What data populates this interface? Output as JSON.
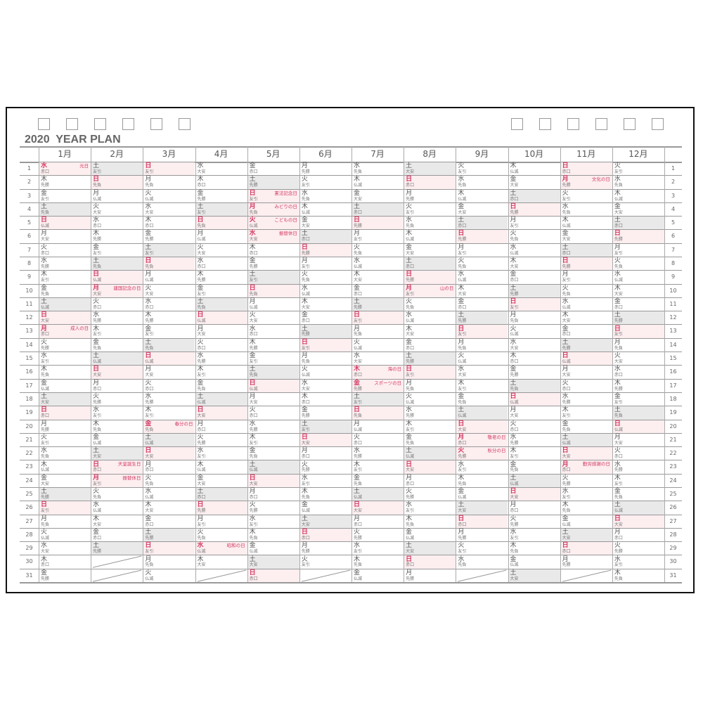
{
  "title": "2020  YEAR PLAN",
  "checkbox_count_left": 6,
  "checkbox_count_right": 6,
  "colors": {
    "holiday_text": "#d23a62",
    "holiday_bg": "#fdeef0",
    "saturday_bg": "#e9e9ea",
    "frame": "#111111"
  },
  "days": [
    1,
    2,
    3,
    4,
    5,
    6,
    7,
    8,
    9,
    10,
    11,
    12,
    13,
    14,
    15,
    16,
    17,
    18,
    19,
    20,
    21,
    22,
    23,
    24,
    25,
    26,
    27,
    28,
    29,
    30,
    31
  ],
  "months": [
    {
      "label": "1月",
      "wd": "水木金土日月火水木金土日月火水木金土日月火水木金土日月火水木金",
      "rk": [
        "赤口",
        "先勝",
        "友引",
        "先負",
        "仏滅",
        "大安",
        "赤口",
        "先勝",
        "友引",
        "先負",
        "仏滅",
        "大安",
        "赤口",
        "先勝",
        "友引",
        "先負",
        "仏滅",
        "大安",
        "赤口",
        "先勝",
        "友引",
        "先負",
        "仏滅",
        "大安",
        "先勝",
        "友引",
        "先負",
        "仏滅",
        "大安",
        "赤口",
        "先勝"
      ],
      "hol": {
        "1": "元日",
        "13": "成人の日"
      }
    },
    {
      "label": "2月",
      "wd": "土日月火水木金土日月火水木金土日月火水木金土日月火水木金土",
      "rk": [
        "友引",
        "先負",
        "仏滅",
        "大安",
        "赤口",
        "先勝",
        "友引",
        "先負",
        "仏滅",
        "大安",
        "赤口",
        "先勝",
        "友引",
        "先負",
        "仏滅",
        "大安",
        "赤口",
        "先勝",
        "友引",
        "先負",
        "仏滅",
        "大安",
        "赤口",
        "友引",
        "先負",
        "仏滅",
        "大安",
        "赤口",
        "先勝"
      ],
      "hol": {
        "10": "建国記念の日",
        "23": "天皇誕生日",
        "24": "振替休日"
      }
    },
    {
      "label": "3月",
      "wd": "日月火水木金土日月火水木金土日月火水木金土日月火水木金土日月火",
      "rk": [
        "友引",
        "先負",
        "仏滅",
        "大安",
        "赤口",
        "先勝",
        "友引",
        "先負",
        "仏滅",
        "大安",
        "赤口",
        "先勝",
        "友引",
        "先負",
        "仏滅",
        "大安",
        "赤口",
        "先勝",
        "友引",
        "先負",
        "仏滅",
        "大安",
        "赤口",
        "先負",
        "仏滅",
        "大安",
        "赤口",
        "先勝",
        "友引",
        "先負",
        "仏滅"
      ],
      "hol": {
        "20": "春分の日"
      }
    },
    {
      "label": "4月",
      "wd": "水木金土日月火水木金土日月火水木金土日月火水木金土日月火水木",
      "rk": [
        "大安",
        "赤口",
        "先勝",
        "友引",
        "先負",
        "仏滅",
        "大安",
        "赤口",
        "先勝",
        "友引",
        "先負",
        "仏滅",
        "大安",
        "赤口",
        "先勝",
        "友引",
        "先負",
        "仏滅",
        "大安",
        "赤口",
        "先勝",
        "友引",
        "仏滅",
        "大安",
        "赤口",
        "先勝",
        "友引",
        "先負",
        "仏滅",
        "大安"
      ],
      "hol": {
        "29": "昭和の日"
      }
    },
    {
      "label": "5月",
      "wd": "金土日月火水木金土日月火水木金土日月火水木金土日月火水木金土日",
      "rk": [
        "赤口",
        "先勝",
        "友引",
        "先負",
        "仏滅",
        "大安",
        "赤口",
        "先勝",
        "友引",
        "先負",
        "仏滅",
        "大安",
        "赤口",
        "先勝",
        "友引",
        "先負",
        "仏滅",
        "大安",
        "赤口",
        "先勝",
        "友引",
        "先負",
        "仏滅",
        "大安",
        "赤口",
        "先勝",
        "友引",
        "先負",
        "仏滅",
        "大安",
        "赤口"
      ],
      "hol": {
        "3": "憲法記念日",
        "4": "みどりの日",
        "5": "こどもの日",
        "6": "振替休日"
      }
    },
    {
      "label": "6月",
      "wd": "月火水木金土日月火水木金土日月火水木金土日月火水木金土日月火",
      "rk": [
        "先勝",
        "友引",
        "先負",
        "仏滅",
        "大安",
        "赤口",
        "先勝",
        "友引",
        "先負",
        "仏滅",
        "大安",
        "赤口",
        "先勝",
        "友引",
        "先負",
        "仏滅",
        "大安",
        "赤口",
        "先勝",
        "友引",
        "大安",
        "赤口",
        "先勝",
        "友引",
        "先負",
        "仏滅",
        "大安",
        "赤口",
        "先勝",
        "友引"
      ],
      "hol": {}
    },
    {
      "label": "7月",
      "wd": "水木金土日月火水木金土日月火水木金土日月火水木金土日月火水木金",
      "rk": [
        "先負",
        "仏滅",
        "大安",
        "赤口",
        "先勝",
        "友引",
        "先負",
        "仏滅",
        "大安",
        "赤口",
        "先勝",
        "友引",
        "先負",
        "仏滅",
        "大安",
        "赤口",
        "先勝",
        "友引",
        "先負",
        "仏滅",
        "赤口",
        "先勝",
        "友引",
        "先負",
        "仏滅",
        "大安",
        "赤口",
        "先勝",
        "友引",
        "先負",
        "仏滅"
      ],
      "hol": {
        "16": "海の日",
        "17": "スポーツの日"
      }
    },
    {
      "label": "8月",
      "wd": "土日月火水木金土日月火水木金土日月火水木金土日月火水木金土日月",
      "rk": [
        "大安",
        "赤口",
        "先勝",
        "友引",
        "先負",
        "仏滅",
        "大安",
        "赤口",
        "先勝",
        "友引",
        "先負",
        "仏滅",
        "大安",
        "赤口",
        "先勝",
        "友引",
        "先負",
        "仏滅",
        "先勝",
        "友引",
        "先負",
        "仏滅",
        "大安",
        "赤口",
        "先勝",
        "友引",
        "先負",
        "仏滅",
        "大安",
        "赤口",
        "先勝"
      ],
      "hol": {
        "10": "山の日"
      }
    },
    {
      "label": "9月",
      "wd": "火水木金土日月火水木金土日月火水木金土日月火水木金土日月火水",
      "rk": [
        "友引",
        "先負",
        "仏滅",
        "大安",
        "赤口",
        "先勝",
        "友引",
        "先負",
        "仏滅",
        "大安",
        "赤口",
        "先勝",
        "友引",
        "先負",
        "仏滅",
        "大安",
        "友引",
        "先負",
        "仏滅",
        "大安",
        "赤口",
        "先勝",
        "友引",
        "先負",
        "仏滅",
        "大安",
        "赤口",
        "先勝",
        "友引",
        "先負"
      ],
      "hol": {
        "21": "敬老の日",
        "22": "秋分の日"
      }
    },
    {
      "label": "10月",
      "wd": "木金土日月火水木金土日月火水木金土日月火水木金土日月火水木金土",
      "rk": [
        "仏滅",
        "大安",
        "赤口",
        "先勝",
        "友引",
        "先負",
        "仏滅",
        "大安",
        "赤口",
        "先勝",
        "友引",
        "先負",
        "仏滅",
        "大安",
        "赤口",
        "先勝",
        "先負",
        "仏滅",
        "大安",
        "赤口",
        "先勝",
        "友引",
        "先負",
        "仏滅",
        "大安",
        "赤口",
        "先勝",
        "友引",
        "先負",
        "仏滅",
        "大安"
      ],
      "hol": {}
    },
    {
      "label": "11月",
      "wd": "日月火水木金土日月火水木金土日月火水木金土日月火水木金土日月",
      "rk": [
        "赤口",
        "先勝",
        "友引",
        "先負",
        "仏滅",
        "大安",
        "赤口",
        "先勝",
        "友引",
        "先負",
        "仏滅",
        "大安",
        "赤口",
        "先勝",
        "仏滅",
        "大安",
        "赤口",
        "先勝",
        "友引",
        "先負",
        "仏滅",
        "大安",
        "赤口",
        "先勝",
        "友引",
        "先負",
        "仏滅",
        "大安",
        "赤口",
        "先勝"
      ],
      "hol": {
        "2": "文化の日",
        "23": "勤労感謝の日"
      }
    },
    {
      "label": "12月",
      "wd": "火水木金土日月火水木金土日月火水木金土日月火水木金土日月火水木",
      "rk": [
        "友引",
        "先負",
        "仏滅",
        "大安",
        "赤口",
        "先勝",
        "友引",
        "先負",
        "仏滅",
        "大安",
        "赤口",
        "先勝",
        "友引",
        "先負",
        "大安",
        "赤口",
        "先勝",
        "友引",
        "先負",
        "仏滅",
        "大安",
        "赤口",
        "先勝",
        "友引",
        "先負",
        "仏滅",
        "大安",
        "赤口",
        "先勝",
        "友引",
        "先負"
      ],
      "hol": {}
    }
  ]
}
